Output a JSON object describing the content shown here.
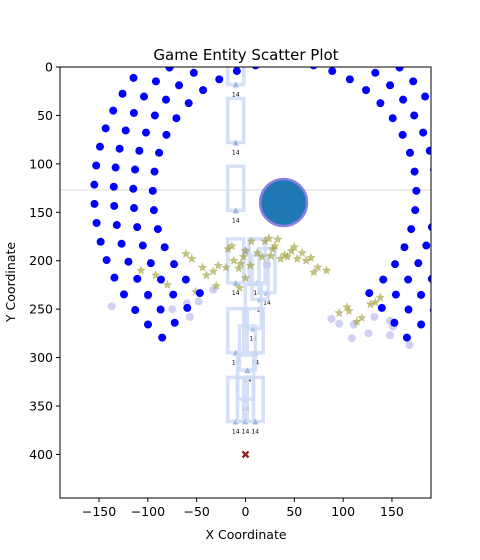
{
  "chart_data": {
    "type": "scatter",
    "title": "Game Entity Scatter Plot",
    "xlabel": "X Coordinate",
    "ylabel": "Y Coordinate",
    "xlim": [
      -190,
      190
    ],
    "ylim": [
      0,
      445
    ],
    "y_inverted": true,
    "x_ticks": [
      -150,
      -100,
      -50,
      0,
      50,
      100,
      150
    ],
    "y_ticks": [
      0,
      50,
      100,
      150,
      200,
      250,
      300,
      350,
      400
    ],
    "grid": false,
    "legend": "none",
    "colors": {
      "ring": "#0000ff",
      "faint_circle": "#c8c8f0",
      "star": "#9a9a30",
      "slot": "#cfdcf7",
      "triangle": "#9fb8e0",
      "player": "#1f77b4",
      "player_edge": "#8a80e0",
      "target": "#8b1a1a",
      "aim_line": "#d8d8d8"
    },
    "ring": {
      "center": [
        40,
        130
      ],
      "radii": [
        135,
        155,
        175,
        195
      ],
      "arc_start_deg": -230,
      "arc_end_deg": 50,
      "points_per_ring": [
        34,
        39,
        44,
        49
      ]
    },
    "player": {
      "x": 39,
      "y": 140,
      "r": 24
    },
    "target": {
      "x": 0,
      "y": 400
    },
    "aim_line_y": 127,
    "slots": [
      {
        "x": -10,
        "y": 20,
        "label": "14"
      },
      {
        "x": -10,
        "y": 80,
        "label": "14"
      },
      {
        "x": -10,
        "y": 150,
        "label": "14"
      },
      {
        "x": -10,
        "y": 225,
        "label": "14"
      },
      {
        "x": 12,
        "y": 225,
        "label": "14"
      },
      {
        "x": 22,
        "y": 235,
        "label": "14"
      },
      {
        "x": 15,
        "y": 242,
        "label": "14"
      },
      {
        "x": 8,
        "y": 272,
        "label": "14"
      },
      {
        "x": -10,
        "y": 297,
        "label": "14"
      },
      {
        "x": 10,
        "y": 297,
        "label": "14"
      },
      {
        "x": 2,
        "y": 315,
        "label": "14"
      },
      {
        "x": 0,
        "y": 345,
        "label": "14"
      },
      {
        "x": -10,
        "y": 368,
        "label": "14"
      },
      {
        "x": 0,
        "y": 368,
        "label": "14"
      },
      {
        "x": 10,
        "y": 368,
        "label": "14"
      }
    ],
    "faint_points": [
      [
        -137,
        247
      ],
      [
        -100,
        237
      ],
      [
        -60,
        244
      ],
      [
        -75,
        250
      ],
      [
        -48,
        242
      ],
      [
        -33,
        230
      ],
      [
        -57,
        258
      ],
      [
        88,
        260
      ],
      [
        96,
        265
      ],
      [
        111,
        266
      ],
      [
        109,
        280
      ],
      [
        126,
        275
      ],
      [
        132,
        258
      ],
      [
        148,
        262
      ],
      [
        148,
        277
      ],
      [
        151,
        268
      ],
      [
        168,
        287
      ],
      [
        22,
        204
      ],
      [
        0,
        190
      ]
    ],
    "stars": [
      [
        -107,
        210
      ],
      [
        -92,
        215
      ],
      [
        -61,
        193
      ],
      [
        -55,
        198
      ],
      [
        -44,
        207
      ],
      [
        -33,
        211
      ],
      [
        -40,
        215
      ],
      [
        -28,
        205
      ],
      [
        -20,
        207
      ],
      [
        -12,
        200
      ],
      [
        -7,
        208
      ],
      [
        -18,
        188
      ],
      [
        -14,
        185
      ],
      [
        -5,
        203
      ],
      [
        -2,
        196
      ],
      [
        0,
        190
      ],
      [
        6,
        180
      ],
      [
        5,
        205
      ],
      [
        12,
        192
      ],
      [
        17,
        196
      ],
      [
        20,
        180
      ],
      [
        24,
        177
      ],
      [
        26,
        195
      ],
      [
        28,
        188
      ],
      [
        30,
        185
      ],
      [
        33,
        178
      ],
      [
        36,
        198
      ],
      [
        40,
        194
      ],
      [
        43,
        196
      ],
      [
        47,
        190
      ],
      [
        50,
        186
      ],
      [
        53,
        198
      ],
      [
        58,
        192
      ],
      [
        62,
        200
      ],
      [
        67,
        197
      ],
      [
        70,
        212
      ],
      [
        74,
        207
      ],
      [
        83,
        210
      ],
      [
        -6,
        228
      ],
      [
        0,
        218
      ],
      [
        -30,
        226
      ],
      [
        -51,
        232
      ],
      [
        -80,
        225
      ],
      [
        96,
        254
      ],
      [
        104,
        248
      ],
      [
        106,
        252
      ],
      [
        114,
        263
      ],
      [
        119,
        259
      ],
      [
        128,
        245
      ],
      [
        133,
        243
      ],
      [
        138,
        238
      ]
    ]
  }
}
